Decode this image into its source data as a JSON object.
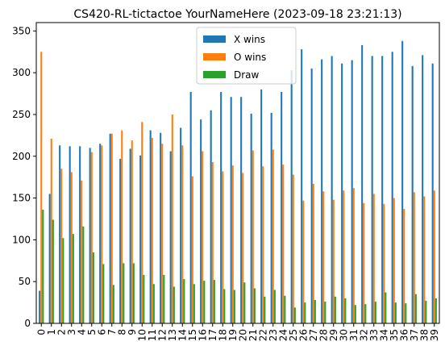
{
  "chart_data": {
    "type": "bar",
    "title": "CS420-RL-tictactoe YourNameHere (2023-09-18 23:21:13)",
    "xlabel": "",
    "ylabel": "",
    "categories": [
      "0",
      "1",
      "2",
      "3",
      "4",
      "5",
      "6",
      "7",
      "8",
      "9",
      "10",
      "11",
      "12",
      "13",
      "14",
      "15",
      "16",
      "17",
      "18",
      "19",
      "20",
      "21",
      "22",
      "23",
      "24",
      "25",
      "26",
      "27",
      "28",
      "29",
      "30",
      "31",
      "32",
      "33",
      "34",
      "35",
      "36",
      "37",
      "38",
      "39"
    ],
    "ylim": [
      0,
      360
    ],
    "yticks": [
      0,
      50,
      100,
      150,
      200,
      250,
      300,
      350
    ],
    "grid": false,
    "legend_position": "top-center",
    "series": [
      {
        "name": "X wins",
        "color": "#1f77b4",
        "values": [
          39,
          155,
          213,
          212,
          212,
          210,
          215,
          227,
          197,
          209,
          201,
          231,
          228,
          206,
          234,
          277,
          244,
          255,
          277,
          271,
          271,
          251,
          280,
          252,
          277,
          303,
          328,
          305,
          316,
          320,
          311,
          315,
          333,
          320,
          320,
          325,
          338,
          308,
          321,
          311
        ]
      },
      {
        "name": "O wins",
        "color": "#ff7f0e",
        "values": [
          325,
          221,
          185,
          181,
          171,
          205,
          213,
          227,
          231,
          219,
          241,
          222,
          215,
          250,
          213,
          176,
          206,
          193,
          182,
          189,
          180,
          207,
          188,
          208,
          190,
          178,
          147,
          167,
          158,
          148,
          159,
          162,
          144,
          155,
          143,
          150,
          137,
          157,
          152,
          159
        ]
      },
      {
        "name": "Draw",
        "color": "#2ca02c",
        "values": [
          136,
          124,
          102,
          107,
          116,
          85,
          71,
          46,
          72,
          72,
          58,
          47,
          58,
          44,
          53,
          47,
          51,
          52,
          41,
          40,
          49,
          42,
          32,
          40,
          33,
          19,
          25,
          28,
          26,
          32,
          30,
          22,
          23,
          26,
          37,
          25,
          24,
          35,
          27,
          30
        ]
      }
    ]
  }
}
